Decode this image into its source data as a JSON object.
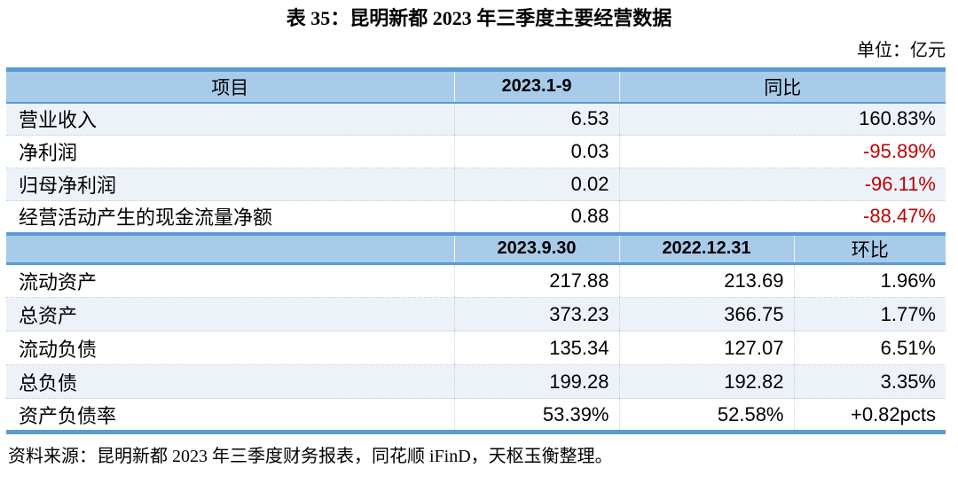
{
  "page": {
    "title": "表 35：昆明新都 2023 年三季度主要经营数据",
    "unit_label": "单位：亿元",
    "source_note": "资料来源：昆明新都 2023 年三季度财务报表，同花顺 iFinD，天枢玉衡整理。"
  },
  "colors": {
    "header_bg": "#a8cbe9",
    "row_alt_bg": "#edf2f9",
    "border_blue": "#5b9bd5",
    "negative_red": "#c00000",
    "text": "#000000"
  },
  "table": {
    "section1": {
      "headers": [
        "项目",
        "2023.1-9",
        "同比"
      ],
      "rows": [
        {
          "item": "营业收入",
          "value": "6.53",
          "yoy": "160.83%"
        },
        {
          "item": "净利润",
          "value": "0.03",
          "yoy": "-95.89%"
        },
        {
          "item": "归母净利润",
          "value": "0.02",
          "yoy": "-96.11%"
        },
        {
          "item": "经营活动产生的现金流量净额",
          "value": "0.88",
          "yoy": "-88.47%"
        }
      ]
    },
    "section2": {
      "headers": [
        "",
        "2023.9.30",
        "2022.12.31",
        "环比"
      ],
      "rows": [
        {
          "item": "流动资产",
          "v2023": "217.88",
          "v2022": "213.69",
          "qoq": "1.96%"
        },
        {
          "item": "总资产",
          "v2023": "373.23",
          "v2022": "366.75",
          "qoq": "1.77%"
        },
        {
          "item": "流动负债",
          "v2023": "135.34",
          "v2022": "127.07",
          "qoq": "6.51%"
        },
        {
          "item": "总负债",
          "v2023": "199.28",
          "v2022": "192.82",
          "qoq": "3.35%"
        },
        {
          "item": "资产负债率",
          "v2023": "53.39%",
          "v2022": "52.58%",
          "qoq": "+0.82pcts"
        }
      ]
    }
  }
}
